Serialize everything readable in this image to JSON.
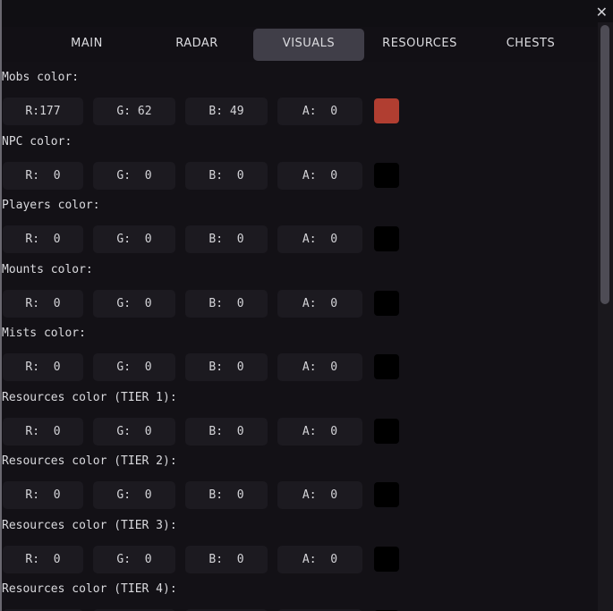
{
  "window": {
    "close_label": "✕"
  },
  "tabs": [
    {
      "label": "MAIN",
      "active": false
    },
    {
      "label": "RADAR",
      "active": false
    },
    {
      "label": "VISUALS",
      "active": true
    },
    {
      "label": "RESOURCES",
      "active": false
    },
    {
      "label": "CHESTS",
      "active": false
    }
  ],
  "colors": {
    "active_tab": "#403e48",
    "field_bg": "#1c1a20",
    "background": "#131116"
  },
  "color_settings": [
    {
      "label": "Mobs color:",
      "r": "R:177",
      "g": "G: 62",
      "b": "B: 49",
      "a": "A:  0",
      "swatch": "#b13e31"
    },
    {
      "label": "NPC color:",
      "r": "R:  0",
      "g": "G:  0",
      "b": "B:  0",
      "a": "A:  0",
      "swatch": "#000000"
    },
    {
      "label": "Players color:",
      "r": "R:  0",
      "g": "G:  0",
      "b": "B:  0",
      "a": "A:  0",
      "swatch": "#000000"
    },
    {
      "label": "Mounts color:",
      "r": "R:  0",
      "g": "G:  0",
      "b": "B:  0",
      "a": "A:  0",
      "swatch": "#000000"
    },
    {
      "label": "Mists color:",
      "r": "R:  0",
      "g": "G:  0",
      "b": "B:  0",
      "a": "A:  0",
      "swatch": "#000000"
    },
    {
      "label": "Resources color (TIER 1):",
      "r": "R:  0",
      "g": "G:  0",
      "b": "B:  0",
      "a": "A:  0",
      "swatch": "#000000"
    },
    {
      "label": "Resources color (TIER 2):",
      "r": "R:  0",
      "g": "G:  0",
      "b": "B:  0",
      "a": "A:  0",
      "swatch": "#000000"
    },
    {
      "label": "Resources color (TIER 3):",
      "r": "R:  0",
      "g": "G:  0",
      "b": "B:  0",
      "a": "A:  0",
      "swatch": "#000000"
    },
    {
      "label": "Resources color (TIER 4):",
      "r": "",
      "g": "",
      "b": "",
      "a": "",
      "swatch": "#000000"
    }
  ]
}
